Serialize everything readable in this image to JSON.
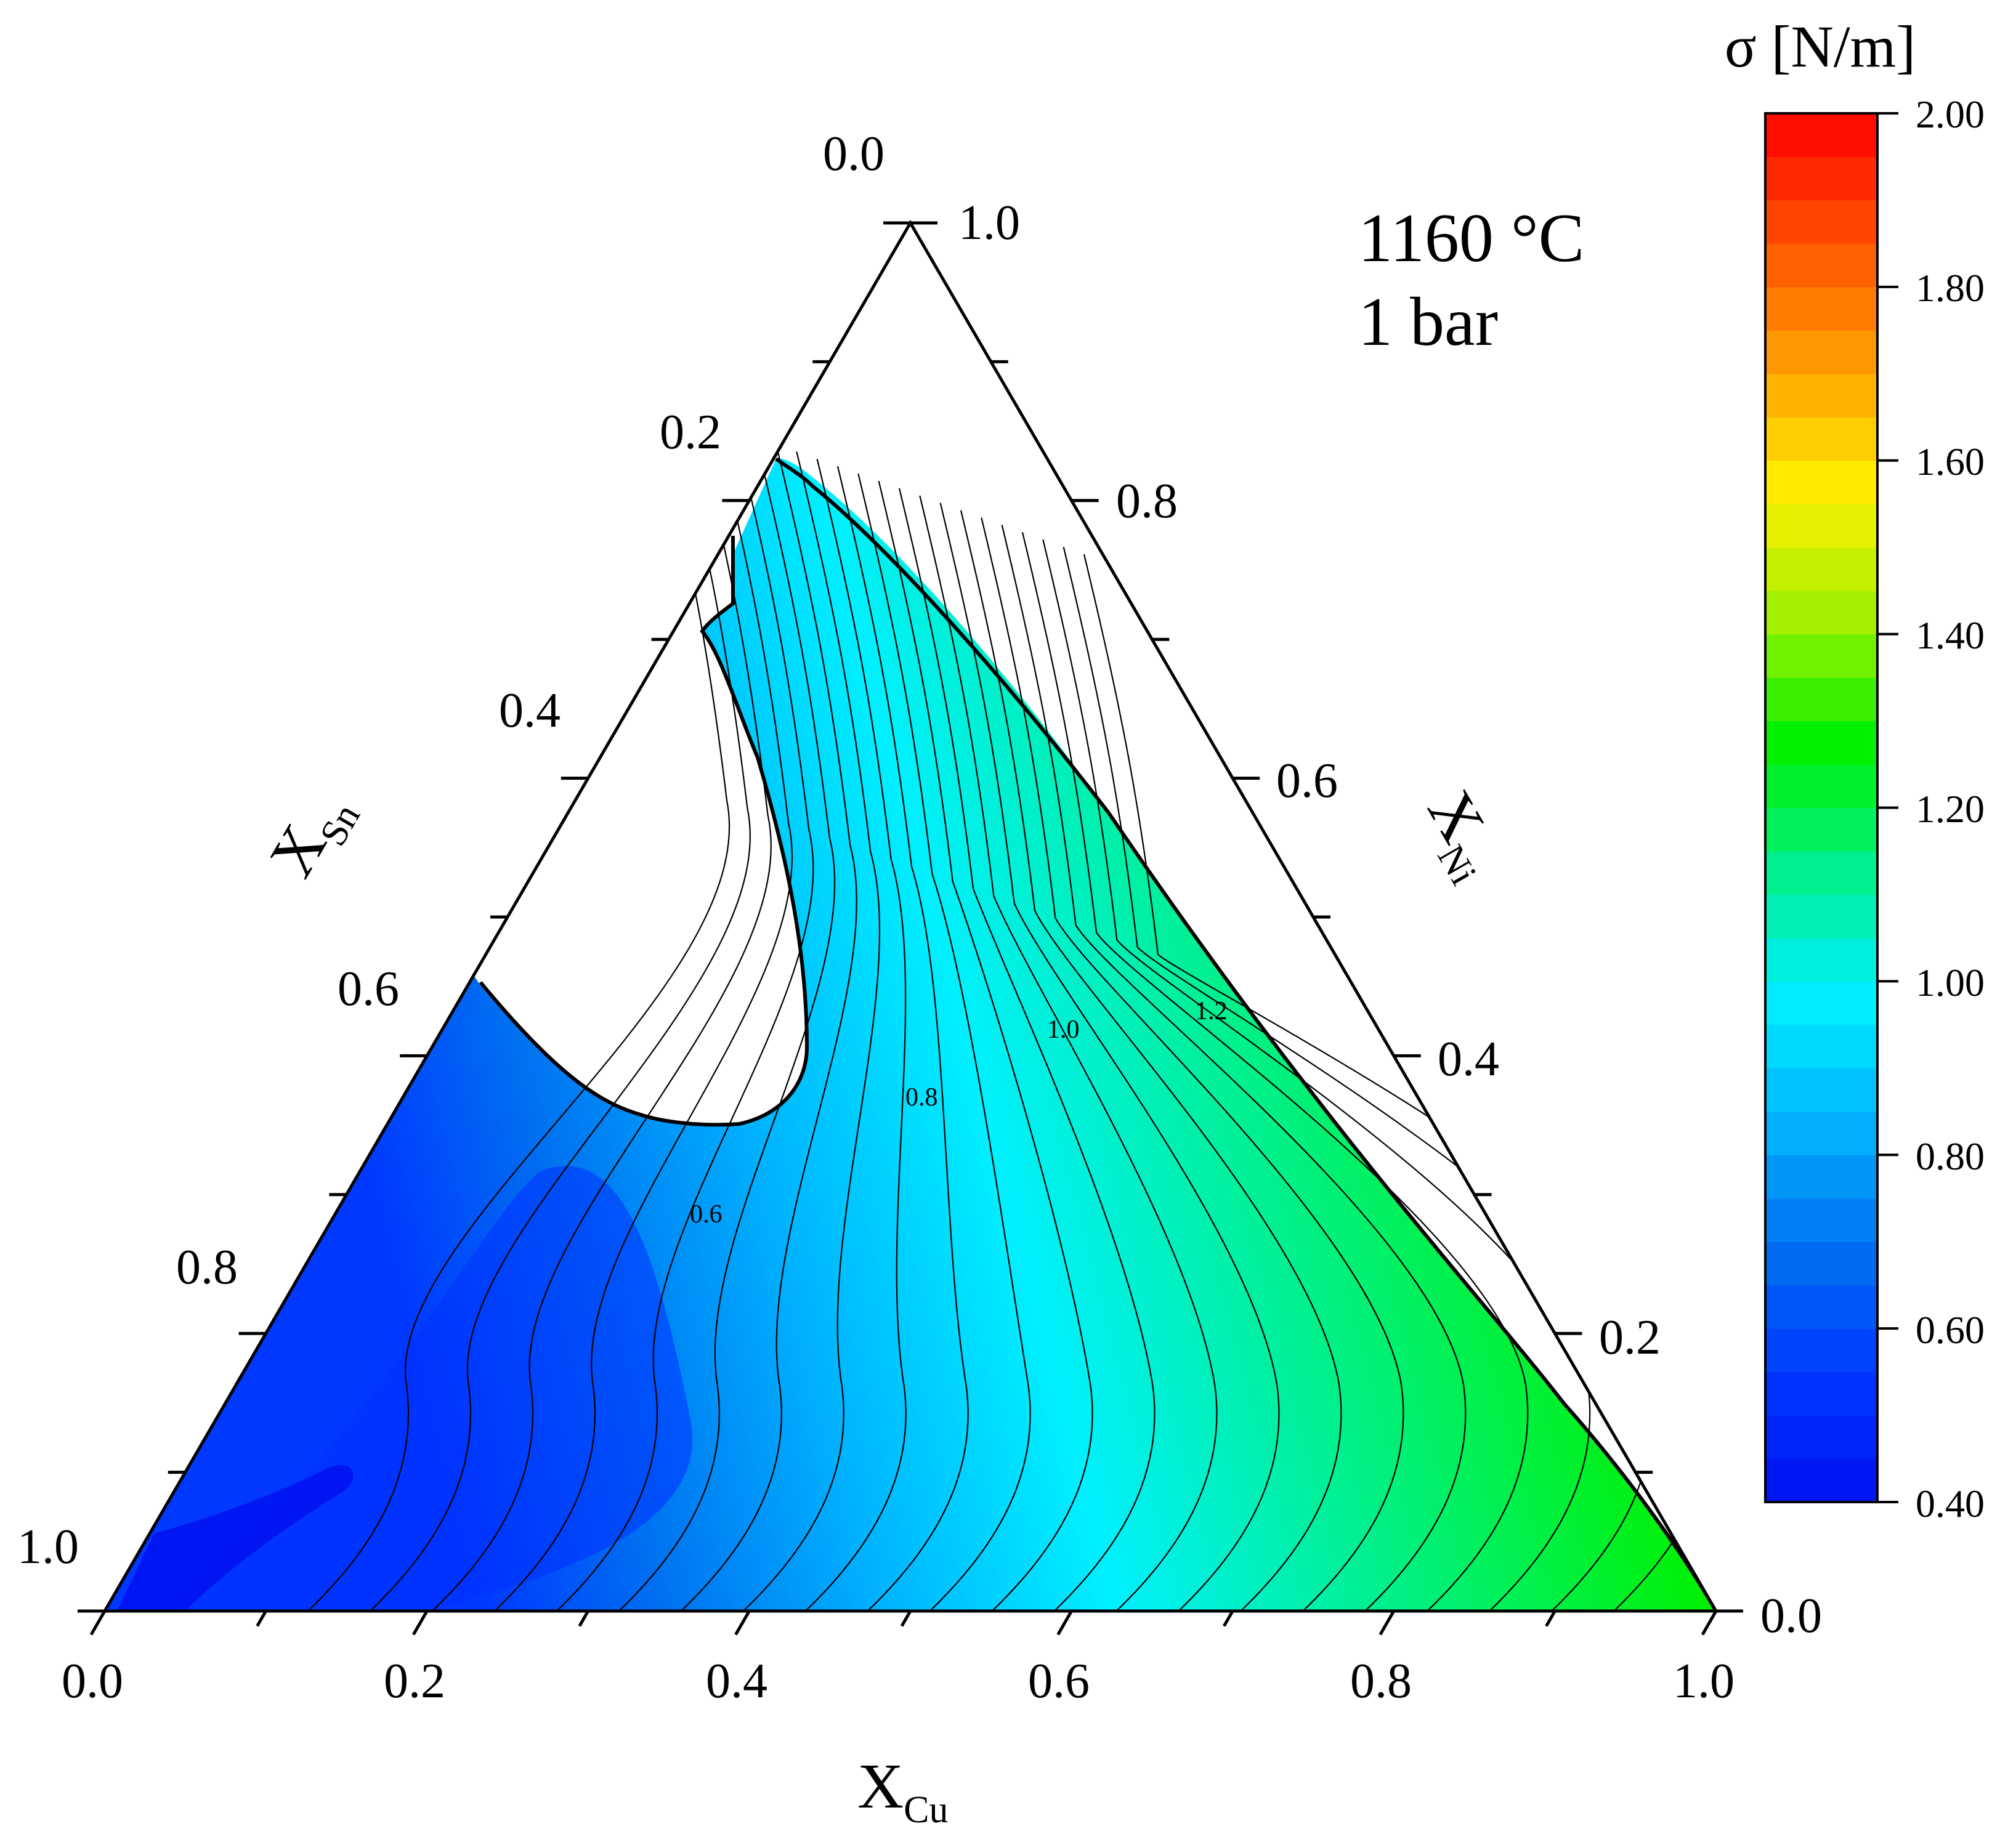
{
  "chart_data": {
    "type": "ternary-contour",
    "conditions": [
      "1160 °C",
      "1 bar"
    ],
    "axes": {
      "bottom": {
        "title": "X",
        "title_sub": "Cu",
        "ticks": [
          "0.0",
          "0.2",
          "0.4",
          "0.6",
          "0.8",
          "1.0"
        ]
      },
      "left": {
        "title": "X",
        "title_sub": "Sn",
        "ticks": [
          "0.0",
          "0.2",
          "0.4",
          "0.6",
          "0.8",
          "1.0"
        ]
      },
      "right": {
        "title": "X",
        "title_sub": "Ni",
        "ticks": [
          "1.0",
          "0.8",
          "0.6",
          "0.4",
          "0.2",
          "0.0"
        ]
      }
    },
    "colorbar": {
      "title": "σ [N/m]",
      "range": [
        0.4,
        2.0
      ],
      "ticks": [
        "2.00",
        "1.80",
        "1.60",
        "1.40",
        "1.20",
        "1.00",
        "0.80",
        "0.60",
        "0.40"
      ],
      "levels": 32,
      "colors": [
        "#0010f0",
        "#0038ff",
        "#0070f0",
        "#00b4ff",
        "#00f0ff",
        "#00f08c",
        "#00f000",
        "#a0f000",
        "#fff000",
        "#ffa000",
        "#ff5000",
        "#ff0000"
      ]
    },
    "contour_labels": [
      "0.6",
      "0.8",
      "1.0",
      "1.2"
    ],
    "regions": {
      "excluded_area_fill": "#ffffff"
    }
  }
}
